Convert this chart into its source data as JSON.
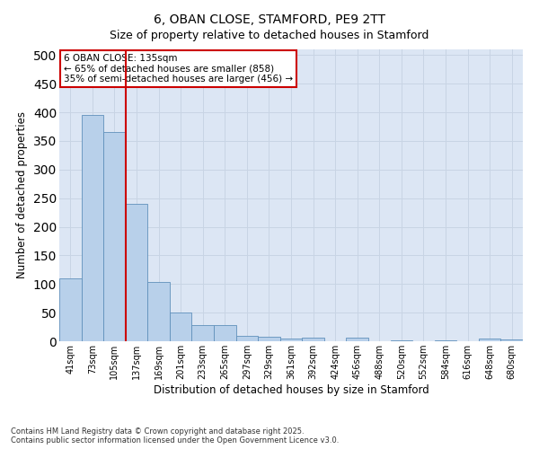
{
  "title": "6, OBAN CLOSE, STAMFORD, PE9 2TT",
  "subtitle": "Size of property relative to detached houses in Stamford",
  "xlabel": "Distribution of detached houses by size in Stamford",
  "ylabel": "Number of detached properties",
  "categories": [
    "41sqm",
    "73sqm",
    "105sqm",
    "137sqm",
    "169sqm",
    "201sqm",
    "233sqm",
    "265sqm",
    "297sqm",
    "329sqm",
    "361sqm",
    "392sqm",
    "424sqm",
    "456sqm",
    "488sqm",
    "520sqm",
    "552sqm",
    "584sqm",
    "616sqm",
    "648sqm",
    "680sqm"
  ],
  "values": [
    110,
    395,
    365,
    240,
    103,
    50,
    28,
    28,
    10,
    8,
    5,
    7,
    0,
    7,
    0,
    1,
    0,
    1,
    0,
    5,
    3
  ],
  "bar_color": "#b8d0ea",
  "bar_edge_color": "#6090bb",
  "grid_color": "#c8d4e4",
  "background_color": "#dce6f4",
  "vline_color": "#cc0000",
  "vline_x": 2.5,
  "annotation_text": "6 OBAN CLOSE: 135sqm\n← 65% of detached houses are smaller (858)\n35% of semi-detached houses are larger (456) →",
  "annotation_box_facecolor": "#ffffff",
  "annotation_border_color": "#cc0000",
  "ylim": [
    0,
    510
  ],
  "yticks": [
    0,
    50,
    100,
    150,
    200,
    250,
    300,
    350,
    400,
    450,
    500
  ],
  "footnote1": "Contains HM Land Registry data © Crown copyright and database right 2025.",
  "footnote2": "Contains public sector information licensed under the Open Government Licence v3.0."
}
